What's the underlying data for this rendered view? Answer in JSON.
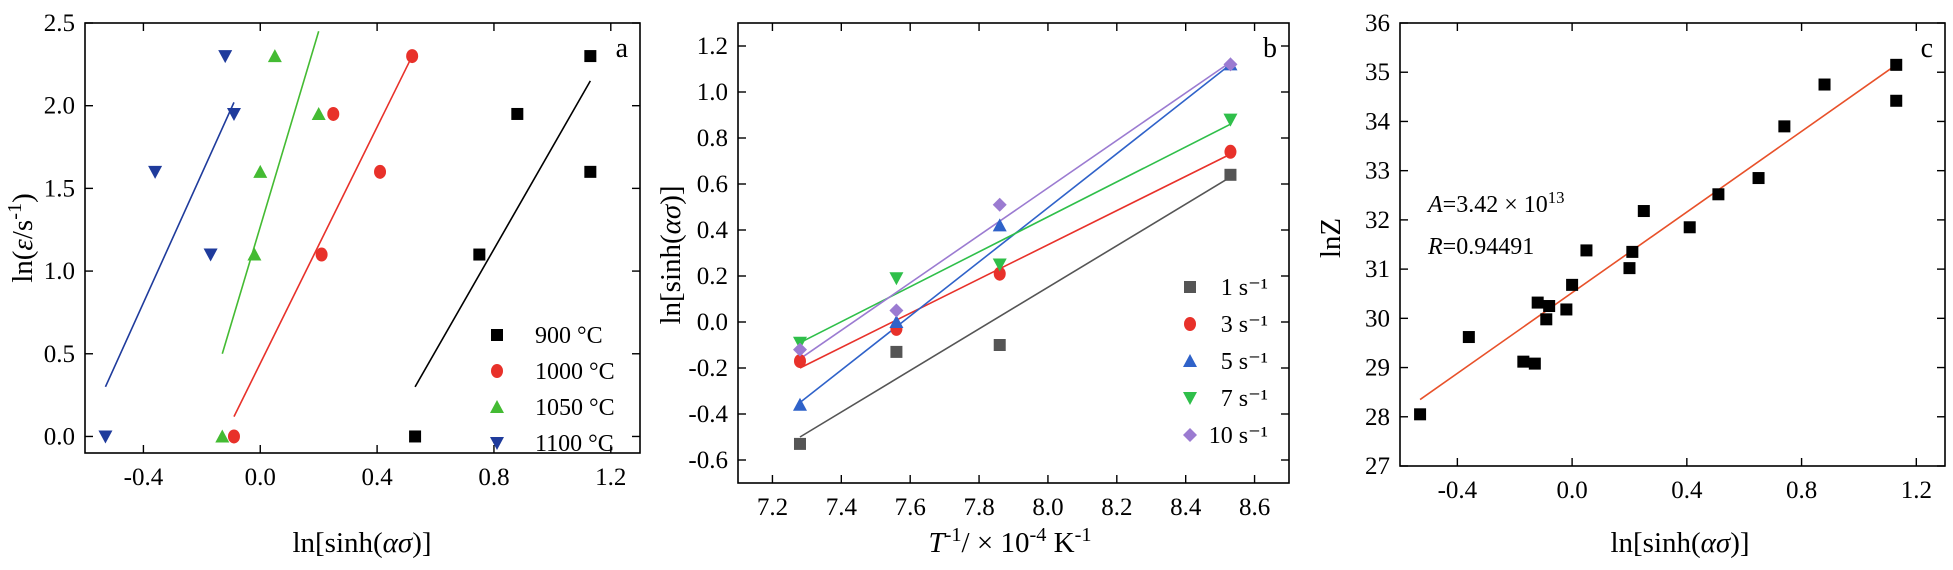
{
  "chart_data": [
    {
      "type": "scatter",
      "panel_label": "a",
      "xlabel": "ln[sinh(ασ)]",
      "ylabel": "ln(ε/s⁻¹)",
      "xlim": [
        -0.6,
        1.3
      ],
      "ylim": [
        -0.1,
        2.5
      ],
      "xticks": [
        "-0.4",
        "0.0",
        "0.4",
        "0.8",
        "1.2"
      ],
      "yticks": [
        "0.0",
        "0.5",
        "1.0",
        "1.5",
        "2.0",
        "2.5"
      ],
      "legend_position": "bottom-right",
      "series": [
        {
          "name": "900 °C",
          "color": "#000000",
          "marker": "square",
          "points": [
            [
              0.53,
              0.0
            ],
            [
              0.75,
              1.1
            ],
            [
              0.88,
              1.95
            ],
            [
              1.13,
              1.6
            ],
            [
              1.13,
              2.3
            ]
          ],
          "fit": [
            [
              0.53,
              0.3
            ],
            [
              1.13,
              2.15
            ]
          ]
        },
        {
          "name": "1000 °C",
          "color": "#e8312a",
          "marker": "circle",
          "points": [
            [
              -0.09,
              0.0
            ],
            [
              0.21,
              1.1
            ],
            [
              0.25,
              1.95
            ],
            [
              0.41,
              1.6
            ],
            [
              0.52,
              2.3
            ]
          ],
          "fit": [
            [
              -0.09,
              0.12
            ],
            [
              0.52,
              2.3
            ]
          ]
        },
        {
          "name": "1050 °C",
          "color": "#44bb33",
          "marker": "triangle",
          "points": [
            [
              -0.13,
              0.0
            ],
            [
              -0.02,
              1.1
            ],
            [
              0.0,
              1.6
            ],
            [
              0.05,
              2.3
            ],
            [
              0.2,
              1.95
            ]
          ],
          "fit": [
            [
              -0.13,
              0.5
            ],
            [
              0.2,
              2.45
            ]
          ]
        },
        {
          "name": "1100 °C",
          "color": "#1f3b9c",
          "marker": "triangle-down",
          "points": [
            [
              -0.53,
              0.0
            ],
            [
              -0.36,
              1.6
            ],
            [
              -0.17,
              1.1
            ],
            [
              -0.12,
              2.3
            ],
            [
              -0.09,
              1.95
            ]
          ],
          "fit": [
            [
              -0.53,
              0.3
            ],
            [
              -0.09,
              2.02
            ]
          ]
        }
      ]
    },
    {
      "type": "scatter",
      "panel_label": "b",
      "xlabel": "T⁻¹/ × 10⁻⁴ K⁻¹",
      "ylabel": "ln[sinh(ασ)]",
      "xlim": [
        7.1,
        8.7
      ],
      "ylim": [
        -0.7,
        1.3
      ],
      "xticks": [
        "7.2",
        "7.4",
        "7.6",
        "7.8",
        "8.0",
        "8.2",
        "8.4",
        "8.6"
      ],
      "yticks": [
        "-0.6",
        "-0.4",
        "-0.2",
        "0.0",
        "0.2",
        "0.4",
        "0.6",
        "0.8",
        "1.0",
        "1.2"
      ],
      "legend_position": "bottom-right",
      "series": [
        {
          "name": "1 s⁻¹",
          "color": "#555555",
          "marker": "square",
          "points": [
            [
              7.28,
              -0.53
            ],
            [
              7.56,
              -0.13
            ],
            [
              7.86,
              -0.1
            ],
            [
              8.53,
              0.64
            ]
          ],
          "fit": [
            [
              7.28,
              -0.5
            ],
            [
              8.53,
              0.63
            ]
          ]
        },
        {
          "name": "3 s⁻¹",
          "color": "#e8312a",
          "marker": "circle",
          "points": [
            [
              7.28,
              -0.17
            ],
            [
              7.56,
              -0.03
            ],
            [
              7.86,
              0.21
            ],
            [
              8.53,
              0.74
            ]
          ],
          "fit": [
            [
              7.28,
              -0.2
            ],
            [
              8.53,
              0.73
            ]
          ]
        },
        {
          "name": "5 s⁻¹",
          "color": "#2f62c9",
          "marker": "triangle",
          "points": [
            [
              7.28,
              -0.36
            ],
            [
              7.56,
              0.0
            ],
            [
              7.86,
              0.42
            ],
            [
              8.53,
              1.12
            ]
          ],
          "fit": [
            [
              7.28,
              -0.35
            ],
            [
              8.53,
              1.12
            ]
          ]
        },
        {
          "name": "7 s⁻¹",
          "color": "#2fbf4a",
          "marker": "triangle-down",
          "points": [
            [
              7.28,
              -0.09
            ],
            [
              7.56,
              0.19
            ],
            [
              7.86,
              0.25
            ],
            [
              8.53,
              0.88
            ]
          ],
          "fit": [
            [
              7.28,
              -0.09
            ],
            [
              8.53,
              0.86
            ]
          ]
        },
        {
          "name": "10 s⁻¹",
          "color": "#9b7bd1",
          "marker": "diamond",
          "points": [
            [
              7.28,
              -0.12
            ],
            [
              7.56,
              0.05
            ],
            [
              7.86,
              0.51
            ],
            [
              8.53,
              1.12
            ]
          ],
          "fit": [
            [
              7.28,
              -0.16
            ],
            [
              8.53,
              1.13
            ]
          ]
        }
      ]
    },
    {
      "type": "scatter",
      "panel_label": "c",
      "xlabel": "ln[sinh(ασ)]",
      "ylabel": "lnZ",
      "xlim": [
        -0.6,
        1.3
      ],
      "ylim": [
        27,
        36
      ],
      "xticks": [
        "-0.4",
        "0.0",
        "0.4",
        "0.8",
        "1.2"
      ],
      "yticks": [
        "27",
        "28",
        "29",
        "30",
        "31",
        "32",
        "33",
        "34",
        "35",
        "36"
      ],
      "annotation": {
        "A": "A=3.42×10¹³",
        "R": "R=0.94491"
      },
      "series": [
        {
          "name": "",
          "color": "#000000",
          "marker": "square",
          "points": [
            [
              -0.53,
              28.05
            ],
            [
              -0.36,
              29.62
            ],
            [
              -0.17,
              29.12
            ],
            [
              -0.13,
              29.08
            ],
            [
              -0.12,
              30.32
            ],
            [
              -0.09,
              29.98
            ],
            [
              -0.08,
              30.25
            ],
            [
              -0.02,
              30.18
            ],
            [
              0.0,
              30.68
            ],
            [
              0.05,
              31.38
            ],
            [
              0.2,
              31.02
            ],
            [
              0.21,
              31.35
            ],
            [
              0.25,
              32.18
            ],
            [
              0.41,
              31.85
            ],
            [
              0.51,
              32.52
            ],
            [
              0.65,
              32.85
            ],
            [
              0.74,
              33.9
            ],
            [
              0.88,
              34.75
            ],
            [
              1.13,
              34.42
            ],
            [
              1.13,
              35.15
            ]
          ],
          "fit": [
            [
              -0.53,
              28.35
            ],
            [
              1.13,
              35.15
            ]
          ],
          "fit_color": "#e8512a"
        }
      ]
    }
  ]
}
